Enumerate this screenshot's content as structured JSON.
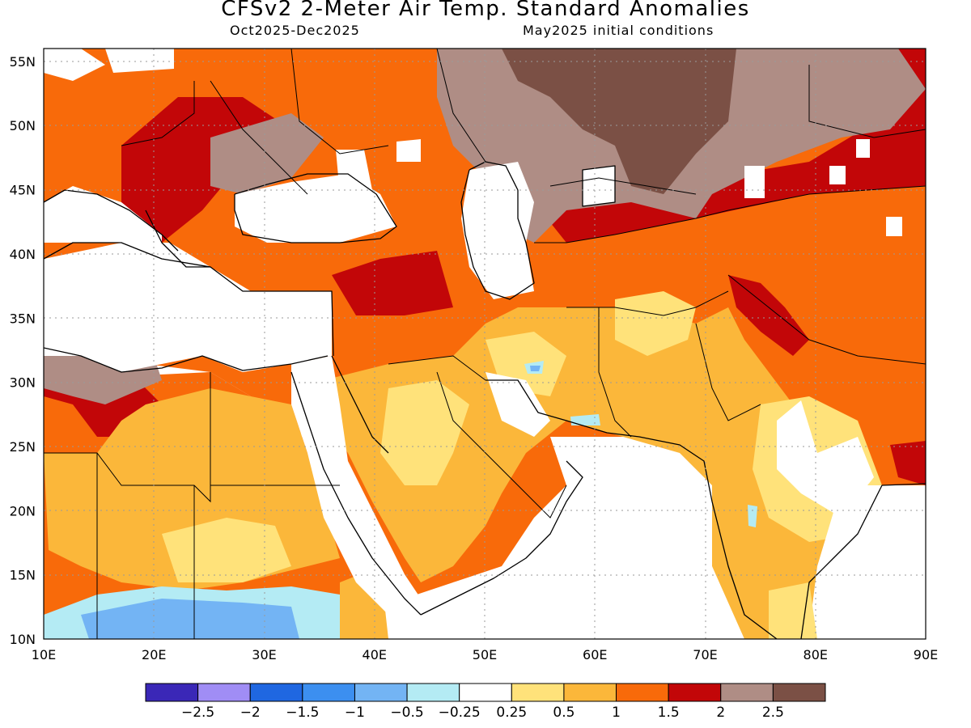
{
  "header": {
    "title": "CFSv2 2-Meter Air Temp. Standard Anomalies",
    "period": "Oct2025-Dec2025",
    "init": "May2025 initial conditions"
  },
  "map": {
    "lon_range": [
      10,
      90
    ],
    "lat_range": [
      10,
      56
    ],
    "lon_ticks": [
      "10E",
      "20E",
      "30E",
      "40E",
      "50E",
      "60E",
      "70E",
      "80E",
      "90E"
    ],
    "lat_ticks": [
      "10N",
      "15N",
      "20N",
      "25N",
      "30N",
      "35N",
      "40N",
      "45N",
      "50N",
      "55N"
    ]
  },
  "legend": {
    "colors": [
      "#3a27b7",
      "#a08df5",
      "#1f67e1",
      "#3c8ff0",
      "#73b4f4",
      "#b4ebf4",
      "#ffffff",
      "#ffe27a",
      "#fbb73a",
      "#f86a0a",
      "#c20608",
      "#af8d85",
      "#7b5045"
    ],
    "labels": [
      "−2.5",
      "−2",
      "−1.5",
      "−1",
      "−0.5",
      "−0.25",
      "0.25",
      "0.5",
      "1",
      "1.5",
      "2",
      "2.5"
    ]
  }
}
